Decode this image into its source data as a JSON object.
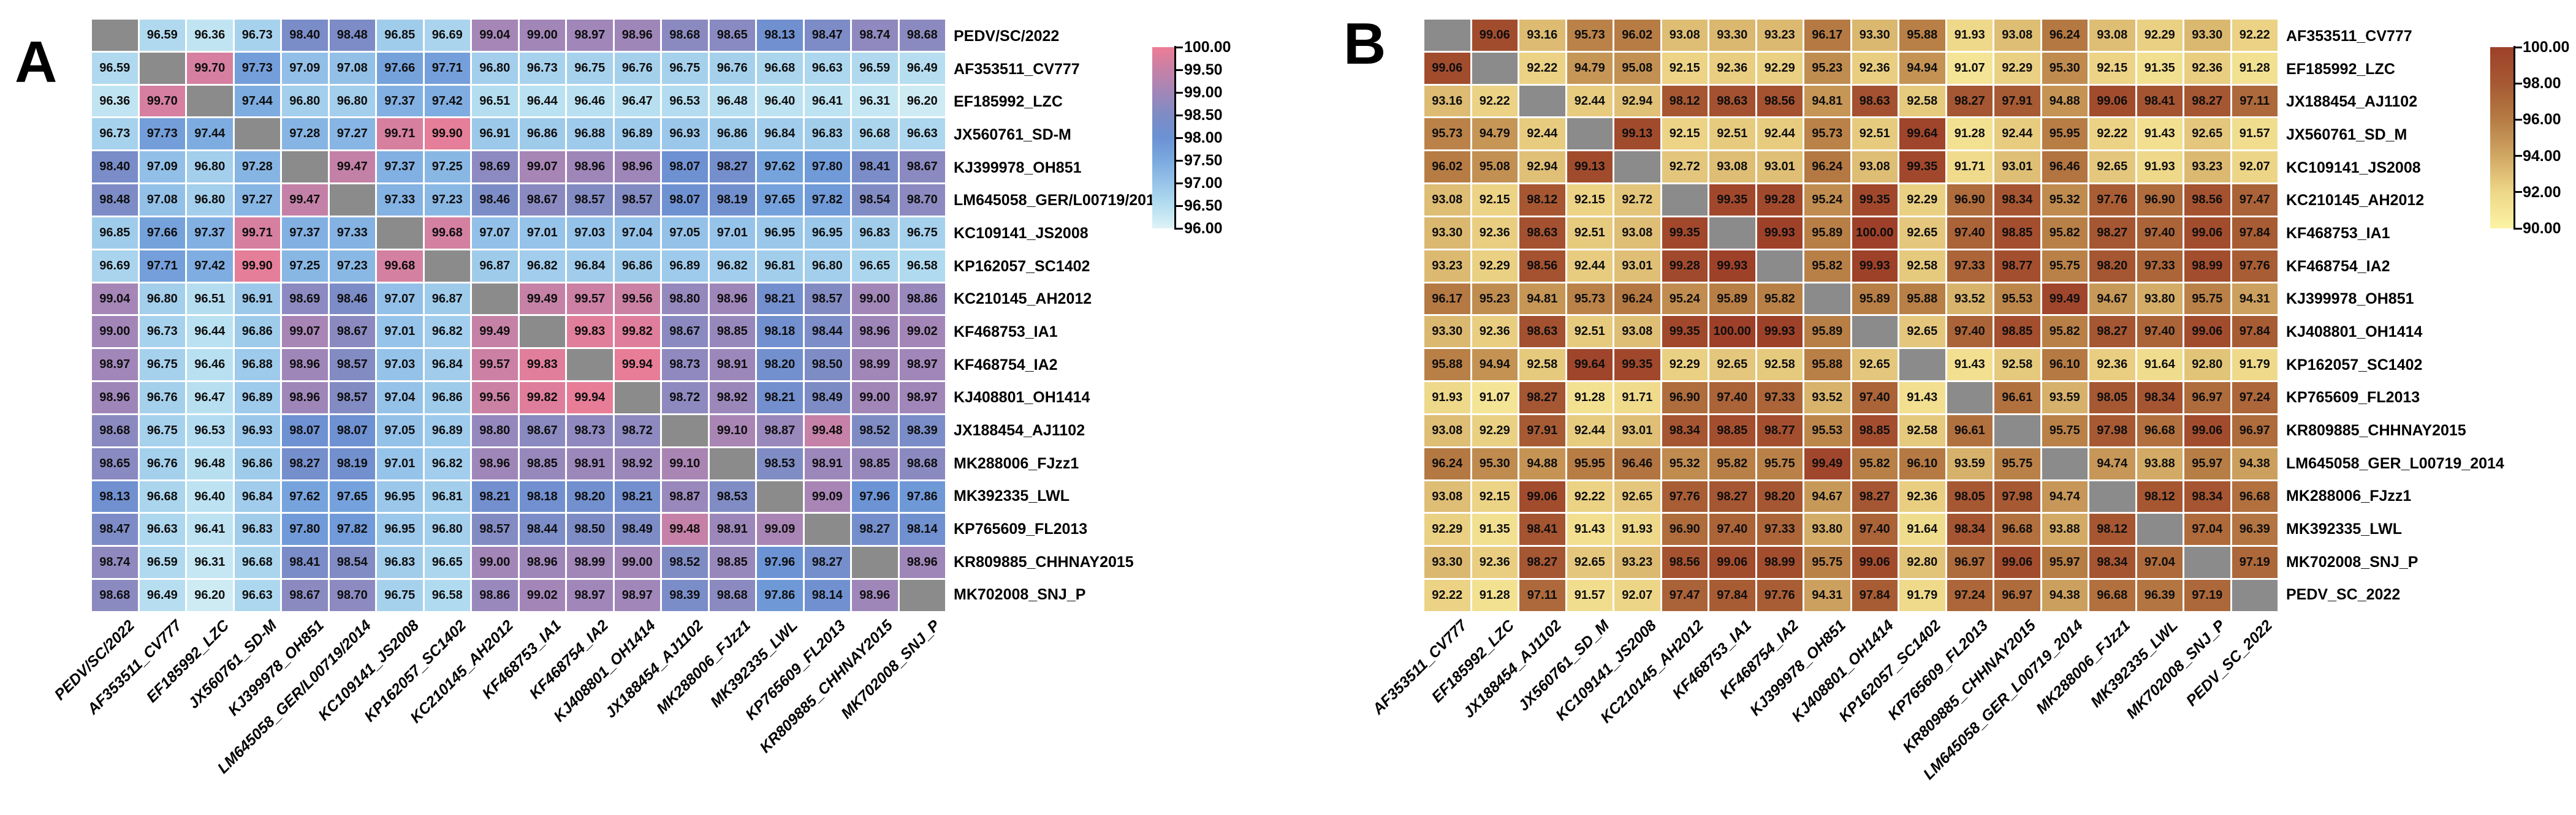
{
  "figure": {
    "type": "pairwise-identity-heatmap-figure",
    "background": "#ffffff",
    "diagonal_color": "#8b8b8b",
    "cell_text_color": "#0d0d0d"
  },
  "chart_data": [
    {
      "type": "heatmap",
      "panel_label": "A",
      "legend_position": "right",
      "grid": false,
      "labels": [
        "PEDV/SC/2022",
        "AF353511_CV777",
        "EF185992_LZC",
        "JX560761_SD-M",
        "KJ399978_OH851",
        "LM645058_GER/L00719/2014",
        "KC109141_JS2008",
        "KP162057_SC1402",
        "KC210145_AH2012",
        "KF468753_IA1",
        "KF468754_IA2",
        "KJ408801_OH1414",
        "JX188454_AJ1102",
        "MK288006_FJzz1",
        "MK392335_LWL",
        "KP765609_FL2013",
        "KR809885_CHHNAY2015",
        "MK702008_SNJ_P"
      ],
      "values": [
        [
          null,
          96.59,
          96.36,
          96.73,
          98.4,
          98.48,
          96.85,
          96.69,
          99.04,
          99.0,
          98.97,
          98.96,
          98.68,
          98.65,
          98.13,
          98.47,
          98.74,
          98.68
        ],
        [
          96.59,
          null,
          99.7,
          97.73,
          97.09,
          97.08,
          97.66,
          97.71,
          96.8,
          96.73,
          96.75,
          96.76,
          96.75,
          96.76,
          96.68,
          96.63,
          96.59,
          96.49
        ],
        [
          96.36,
          99.7,
          null,
          97.44,
          96.8,
          96.8,
          97.37,
          97.42,
          96.51,
          96.44,
          96.46,
          96.47,
          96.53,
          96.48,
          96.4,
          96.41,
          96.31,
          96.2
        ],
        [
          96.73,
          97.73,
          97.44,
          null,
          97.28,
          97.27,
          99.71,
          99.9,
          96.91,
          96.86,
          96.88,
          96.89,
          96.93,
          96.86,
          96.84,
          96.83,
          96.68,
          96.63
        ],
        [
          98.4,
          97.09,
          96.8,
          97.28,
          null,
          99.47,
          97.37,
          97.25,
          98.69,
          99.07,
          98.96,
          98.96,
          98.07,
          98.27,
          97.62,
          97.8,
          98.41,
          98.67
        ],
        [
          98.48,
          97.08,
          96.8,
          97.27,
          99.47,
          null,
          97.33,
          97.23,
          98.46,
          98.67,
          98.57,
          98.57,
          98.07,
          98.19,
          97.65,
          97.82,
          98.54,
          98.7
        ],
        [
          96.85,
          97.66,
          97.37,
          99.71,
          97.37,
          97.33,
          null,
          99.68,
          97.07,
          97.01,
          97.03,
          97.04,
          97.05,
          97.01,
          96.95,
          96.95,
          96.83,
          96.75
        ],
        [
          96.69,
          97.71,
          97.42,
          99.9,
          97.25,
          97.23,
          99.68,
          null,
          96.87,
          96.82,
          96.84,
          96.86,
          96.89,
          96.82,
          96.81,
          96.8,
          96.65,
          96.58
        ],
        [
          99.04,
          96.8,
          96.51,
          96.91,
          98.69,
          98.46,
          97.07,
          96.87,
          null,
          99.49,
          99.57,
          99.56,
          98.8,
          98.96,
          98.21,
          98.57,
          99.0,
          98.86
        ],
        [
          99.0,
          96.73,
          96.44,
          96.86,
          99.07,
          98.67,
          97.01,
          96.82,
          99.49,
          null,
          99.83,
          99.82,
          98.67,
          98.85,
          98.18,
          98.44,
          98.96,
          99.02
        ],
        [
          98.97,
          96.75,
          96.46,
          96.88,
          98.96,
          98.57,
          97.03,
          96.84,
          99.57,
          99.83,
          null,
          99.94,
          98.73,
          98.91,
          98.2,
          98.5,
          98.99,
          98.97
        ],
        [
          98.96,
          96.76,
          96.47,
          96.89,
          98.96,
          98.57,
          97.04,
          96.86,
          99.56,
          99.82,
          99.94,
          null,
          98.72,
          98.92,
          98.21,
          98.49,
          99.0,
          98.97
        ],
        [
          98.68,
          96.75,
          96.53,
          96.93,
          98.07,
          98.07,
          97.05,
          96.89,
          98.8,
          98.67,
          98.73,
          98.72,
          null,
          99.1,
          98.87,
          99.48,
          98.52,
          98.39
        ],
        [
          98.65,
          96.76,
          96.48,
          96.86,
          98.27,
          98.19,
          97.01,
          96.82,
          98.96,
          98.85,
          98.91,
          98.92,
          99.1,
          null,
          98.53,
          98.91,
          98.85,
          98.68
        ],
        [
          98.13,
          96.68,
          96.4,
          96.84,
          97.62,
          97.65,
          96.95,
          96.81,
          98.21,
          98.18,
          98.2,
          98.21,
          98.87,
          98.53,
          null,
          99.09,
          97.96,
          97.86
        ],
        [
          98.47,
          96.63,
          96.41,
          96.83,
          97.8,
          97.82,
          96.95,
          96.8,
          98.57,
          98.44,
          98.5,
          98.49,
          99.48,
          98.91,
          99.09,
          null,
          98.27,
          98.14
        ],
        [
          98.74,
          96.59,
          96.31,
          96.68,
          98.41,
          98.54,
          96.83,
          96.65,
          99.0,
          98.96,
          98.99,
          99.0,
          98.52,
          98.85,
          97.96,
          98.27,
          null,
          98.96
        ],
        [
          98.68,
          96.49,
          96.2,
          96.63,
          98.67,
          98.7,
          96.75,
          96.58,
          98.86,
          99.02,
          98.97,
          98.97,
          98.39,
          98.68,
          97.86,
          98.14,
          98.96,
          null
        ]
      ],
      "value_domain": [
        96.0,
        100.0
      ],
      "colorbar_ticks": [
        "100.00",
        "99.50",
        "99.00",
        "98.50",
        "98.00",
        "97.50",
        "97.00",
        "96.50",
        "96.00"
      ],
      "color_stops": [
        [
          96.0,
          "#dff3f7"
        ],
        [
          96.5,
          "#b5def0"
        ],
        [
          97.0,
          "#97c4e9"
        ],
        [
          97.5,
          "#7aa9df"
        ],
        [
          98.0,
          "#6b92d4"
        ],
        [
          98.5,
          "#7e8cc5"
        ],
        [
          99.0,
          "#a286b8"
        ],
        [
          99.5,
          "#c681a6"
        ],
        [
          100.0,
          "#ed7d96"
        ]
      ]
    },
    {
      "type": "heatmap",
      "panel_label": "B",
      "legend_position": "right",
      "grid": false,
      "labels": [
        "AF353511_CV777",
        "EF185992_LZC",
        "JX188454_AJ1102",
        "JX560761_SD_M",
        "KC109141_JS2008",
        "KC210145_AH2012",
        "KF468753_IA1",
        "KF468754_IA2",
        "KJ399978_OH851",
        "KJ408801_OH1414",
        "KP162057_SC1402",
        "KP765609_FL2013",
        "KR809885_CHHNAY2015",
        "LM645058_GER_L00719_2014",
        "MK288006_FJzz1",
        "MK392335_LWL",
        "MK702008_SNJ_P",
        "PEDV_SC_2022"
      ],
      "values": [
        [
          null,
          99.06,
          93.16,
          95.73,
          96.02,
          93.08,
          93.3,
          93.23,
          96.17,
          93.3,
          95.88,
          91.93,
          93.08,
          96.24,
          93.08,
          92.29,
          93.3,
          92.22
        ],
        [
          99.06,
          null,
          92.22,
          94.79,
          95.08,
          92.15,
          92.36,
          92.29,
          95.23,
          92.36,
          94.94,
          91.07,
          92.29,
          95.3,
          92.15,
          91.35,
          92.36,
          91.28
        ],
        [
          93.16,
          92.22,
          null,
          92.44,
          92.94,
          98.12,
          98.63,
          98.56,
          94.81,
          98.63,
          92.58,
          98.27,
          97.91,
          94.88,
          99.06,
          98.41,
          98.27,
          97.11
        ],
        [
          95.73,
          94.79,
          92.44,
          null,
          99.13,
          92.15,
          92.51,
          92.44,
          95.73,
          92.51,
          99.64,
          91.28,
          92.44,
          95.95,
          92.22,
          91.43,
          92.65,
          91.57
        ],
        [
          96.02,
          95.08,
          92.94,
          99.13,
          null,
          92.72,
          93.08,
          93.01,
          96.24,
          93.08,
          99.35,
          91.71,
          93.01,
          96.46,
          92.65,
          91.93,
          93.23,
          92.07
        ],
        [
          93.08,
          92.15,
          98.12,
          92.15,
          92.72,
          null,
          99.35,
          99.28,
          95.24,
          99.35,
          92.29,
          96.9,
          98.34,
          95.32,
          97.76,
          96.9,
          98.56,
          97.47
        ],
        [
          93.3,
          92.36,
          98.63,
          92.51,
          93.08,
          99.35,
          null,
          99.93,
          95.89,
          100.0,
          92.65,
          97.4,
          98.85,
          95.82,
          98.27,
          97.4,
          99.06,
          97.84
        ],
        [
          93.23,
          92.29,
          98.56,
          92.44,
          93.01,
          99.28,
          99.93,
          null,
          95.82,
          99.93,
          92.58,
          97.33,
          98.77,
          95.75,
          98.2,
          97.33,
          98.99,
          97.76
        ],
        [
          96.17,
          95.23,
          94.81,
          95.73,
          96.24,
          95.24,
          95.89,
          95.82,
          null,
          95.89,
          95.88,
          93.52,
          95.53,
          99.49,
          94.67,
          93.8,
          95.75,
          94.31
        ],
        [
          93.3,
          92.36,
          98.63,
          92.51,
          93.08,
          99.35,
          100.0,
          99.93,
          95.89,
          null,
          92.65,
          97.4,
          98.85,
          95.82,
          98.27,
          97.4,
          99.06,
          97.84
        ],
        [
          95.88,
          94.94,
          92.58,
          99.64,
          99.35,
          92.29,
          92.65,
          92.58,
          95.88,
          92.65,
          null,
          91.43,
          92.58,
          96.1,
          92.36,
          91.64,
          92.8,
          91.79
        ],
        [
          91.93,
          91.07,
          98.27,
          91.28,
          91.71,
          96.9,
          97.4,
          97.33,
          93.52,
          97.4,
          91.43,
          null,
          96.61,
          93.59,
          98.05,
          98.34,
          96.97,
          97.24
        ],
        [
          93.08,
          92.29,
          97.91,
          92.44,
          93.01,
          98.34,
          98.85,
          98.77,
          95.53,
          98.85,
          92.58,
          96.61,
          null,
          95.75,
          97.98,
          96.68,
          99.06,
          96.97
        ],
        [
          96.24,
          95.3,
          94.88,
          95.95,
          96.46,
          95.32,
          95.82,
          95.75,
          99.49,
          95.82,
          96.1,
          93.59,
          95.75,
          null,
          94.74,
          93.88,
          95.97,
          94.38
        ],
        [
          93.08,
          92.15,
          99.06,
          92.22,
          92.65,
          97.76,
          98.27,
          98.2,
          94.67,
          98.27,
          92.36,
          98.05,
          97.98,
          94.74,
          null,
          98.12,
          98.34,
          96.68
        ],
        [
          92.29,
          91.35,
          98.41,
          91.43,
          91.93,
          96.9,
          97.4,
          97.33,
          93.8,
          97.4,
          91.64,
          98.34,
          96.68,
          93.88,
          98.12,
          null,
          97.04,
          96.39
        ],
        [
          93.3,
          92.36,
          98.27,
          92.65,
          93.23,
          98.56,
          99.06,
          98.99,
          95.75,
          99.06,
          92.8,
          96.97,
          99.06,
          95.97,
          98.34,
          97.04,
          null,
          97.19
        ],
        [
          92.22,
          91.28,
          97.11,
          91.57,
          92.07,
          97.47,
          97.84,
          97.76,
          94.31,
          97.84,
          91.79,
          97.24,
          96.97,
          94.38,
          96.68,
          96.39,
          97.19,
          null
        ]
      ],
      "value_domain": [
        90.0,
        100.0
      ],
      "colorbar_ticks": [
        "100.00",
        "98.00",
        "96.00",
        "94.00",
        "92.00",
        "90.00"
      ],
      "color_stops": [
        [
          90.0,
          "#fbf4a4"
        ],
        [
          92.0,
          "#eed788"
        ],
        [
          94.0,
          "#d0a763"
        ],
        [
          96.0,
          "#b67c44"
        ],
        [
          98.0,
          "#a65933"
        ],
        [
          100.0,
          "#9e4029"
        ]
      ]
    }
  ]
}
